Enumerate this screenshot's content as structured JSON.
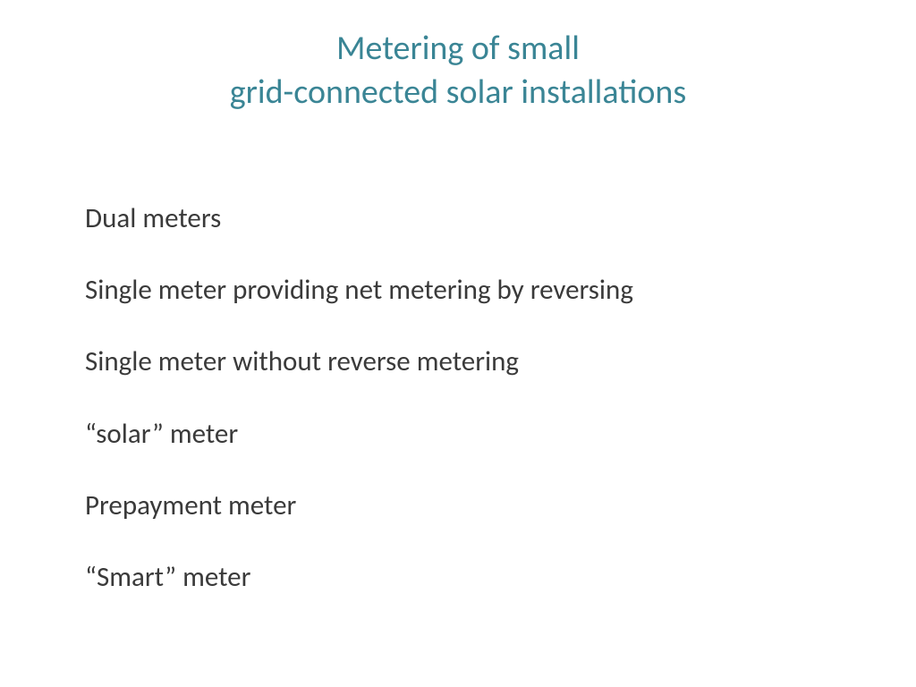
{
  "title": {
    "line1": "Metering of small",
    "line2": "grid-connected solar installations",
    "color": "#3a8595",
    "fontsize": 38
  },
  "items": [
    "Dual meters",
    "Single meter providing net metering by reversing",
    "Single meter without reverse metering",
    "“solar” meter",
    "Prepayment meter",
    "“Smart” meter"
  ],
  "body_color": "#3a3a3a",
  "body_fontsize": 31,
  "background_color": "#ffffff"
}
